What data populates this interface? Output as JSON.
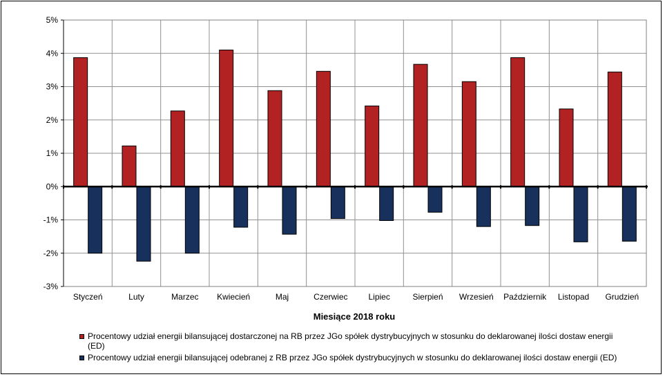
{
  "chart_data": {
    "type": "bar",
    "categories": [
      "Styczeń",
      "Luty",
      "Marzec",
      "Kwiecień",
      "Maj",
      "Czerwiec",
      "Lipiec",
      "Sierpień",
      "Wrzesień",
      "Październik",
      "Listopad",
      "Grudzień"
    ],
    "series": [
      {
        "name": "Procentowy udział energii bilansującej dostarczonej na RB przez JGo spółek dystrybucyjnych w stosunku do deklarowanej ilości dostaw energii (ED)",
        "color": "#B22222",
        "values": [
          3.87,
          1.22,
          2.27,
          4.1,
          2.88,
          3.46,
          2.42,
          3.67,
          3.15,
          3.87,
          2.33,
          3.44
        ]
      },
      {
        "name": "Procentowy udział energii bilansującej odebranej z RB przez JGo spółek dystrybucyjnych w stosunku do deklarowanej ilości dostaw energii (ED)",
        "color": "#17305C",
        "values": [
          -2.0,
          -2.24,
          -2.0,
          -1.22,
          -1.43,
          -0.96,
          -1.02,
          -0.77,
          -1.2,
          -1.17,
          -1.66,
          -1.64
        ]
      }
    ],
    "ylim": [
      -3,
      5
    ],
    "yticks": [
      "5%",
      "4%",
      "3%",
      "2%",
      "1%",
      "0%",
      "-1%",
      "-2%",
      "-3%"
    ],
    "xlabel": "Miesiące 2018  roku",
    "ylabel": "",
    "grid": true,
    "legend": "bottom"
  }
}
